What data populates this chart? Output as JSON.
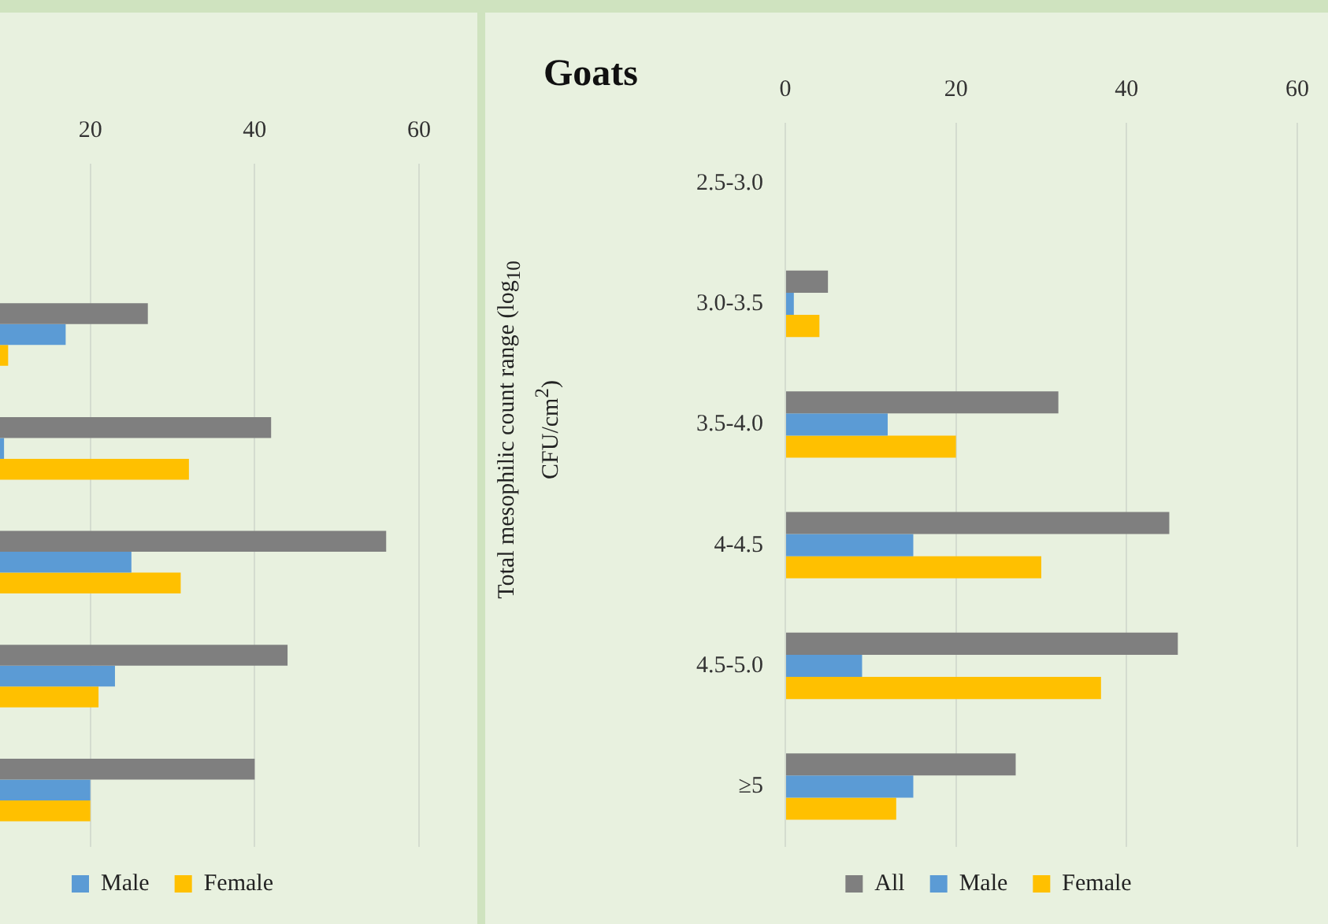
{
  "chart_data": [
    {
      "type": "bar",
      "orientation": "horizontal",
      "categories": [
        null,
        null,
        null,
        null,
        null,
        null
      ],
      "series": [
        {
          "color": "#7f7f7f",
          "values": [
            null,
            27,
            42,
            56,
            44,
            40
          ]
        },
        {
          "name": "Male",
          "color": "#5b9bd5",
          "values": [
            null,
            17,
            9.5,
            25,
            23,
            20
          ]
        },
        {
          "name": "Female",
          "color": "#ffc000",
          "values": [
            null,
            10,
            32,
            31,
            21,
            20
          ]
        }
      ],
      "xlim": [
        0,
        60
      ],
      "xticks": [
        20,
        40,
        60
      ],
      "grid": "x",
      "legend": "bottom",
      "tick_labels": "x"
    },
    {
      "type": "bar",
      "orientation": "horizontal",
      "title": "Goats",
      "ylabel": "Total mesophilic count range (log$_{10}$ CFU/cm$^{2}$)",
      "categories": [
        "2.5-3.0",
        "3.0-3.5",
        "3.5-4.0",
        "4-4.5",
        "4.5-5.0",
        "≥5"
      ],
      "series": [
        {
          "name": "All",
          "color": "#7f7f7f",
          "values": [
            null,
            5,
            32,
            45,
            46,
            27
          ]
        },
        {
          "name": "Male",
          "color": "#5b9bd5",
          "values": [
            null,
            1,
            12,
            15,
            9,
            15
          ]
        },
        {
          "name": "Female",
          "color": "#ffc000",
          "values": [
            null,
            4,
            20,
            30,
            37,
            13
          ]
        }
      ],
      "xlim": [
        0,
        60
      ],
      "xticks": [
        0,
        20,
        40,
        60
      ],
      "grid": "x",
      "legend": "bottom"
    }
  ]
}
